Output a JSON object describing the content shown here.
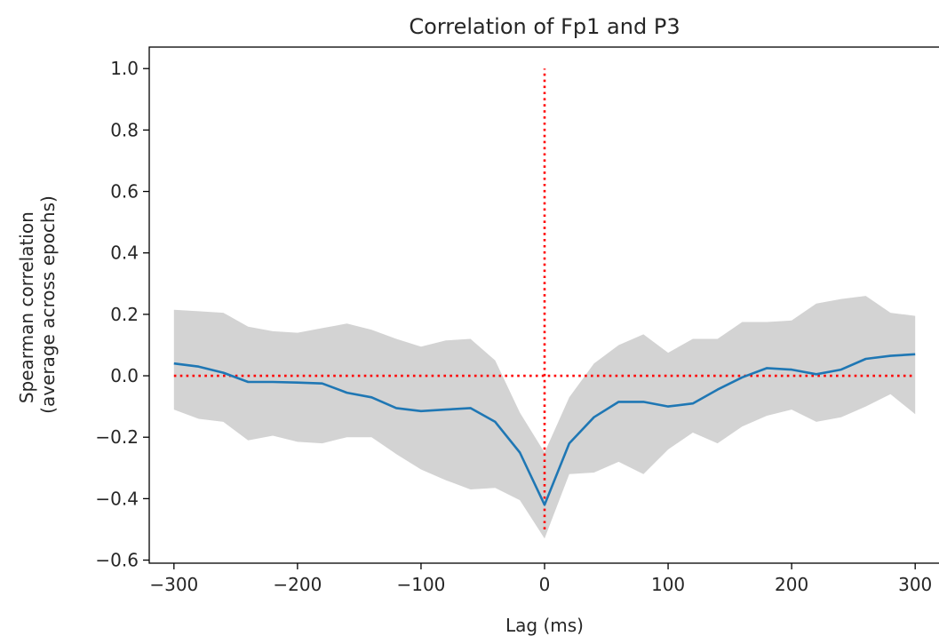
{
  "chart_data": {
    "type": "line",
    "title": "Correlation of Fp1 and P3",
    "xlabel": "Lag (ms)",
    "ylabel": [
      "Spearman correlation",
      "(average across epochs)"
    ],
    "xlim": [
      -320,
      320
    ],
    "ylim": [
      -0.61,
      1.07
    ],
    "xticks": [
      -300,
      -200,
      -100,
      0,
      100,
      200,
      300
    ],
    "xtick_labels": [
      "−300",
      "−200",
      "−100",
      "0",
      "100",
      "200",
      "300"
    ],
    "yticks": [
      -0.6,
      -0.4,
      -0.2,
      0.0,
      0.2,
      0.4,
      0.6,
      0.8,
      1.0
    ],
    "ytick_labels": [
      "−0.6",
      "−0.4",
      "−0.2",
      "0.0",
      "0.2",
      "0.4",
      "0.6",
      "0.8",
      "1.0"
    ],
    "grid": false,
    "x": [
      -300,
      -280,
      -260,
      -240,
      -220,
      -200,
      -180,
      -160,
      -140,
      -120,
      -100,
      -80,
      -60,
      -40,
      -20,
      0,
      20,
      40,
      60,
      80,
      100,
      120,
      140,
      160,
      180,
      200,
      220,
      240,
      260,
      280,
      300
    ],
    "series": [
      {
        "values": [
          0.04,
          0.03,
          0.01,
          -0.02,
          -0.02,
          -0.022,
          -0.025,
          -0.055,
          -0.07,
          -0.105,
          -0.115,
          -0.11,
          -0.105,
          -0.15,
          -0.25,
          -0.42,
          -0.22,
          -0.135,
          -0.085,
          -0.085,
          -0.1,
          -0.09,
          -0.045,
          -0.005,
          0.025,
          0.02,
          0.005,
          0.02,
          0.055,
          0.065,
          0.07
        ],
        "color": "#1f77b4"
      }
    ],
    "band": {
      "upper": [
        0.215,
        0.21,
        0.205,
        0.16,
        0.145,
        0.14,
        0.155,
        0.17,
        0.15,
        0.12,
        0.095,
        0.115,
        0.12,
        0.05,
        -0.12,
        -0.25,
        -0.07,
        0.04,
        0.1,
        0.135,
        0.075,
        0.12,
        0.12,
        0.175,
        0.175,
        0.18,
        0.235,
        0.25,
        0.26,
        0.205,
        0.195
      ],
      "lower": [
        -0.11,
        -0.14,
        -0.15,
        -0.21,
        -0.195,
        -0.215,
        -0.22,
        -0.2,
        -0.2,
        -0.255,
        -0.305,
        -0.34,
        -0.37,
        -0.365,
        -0.405,
        -0.53,
        -0.32,
        -0.315,
        -0.28,
        -0.32,
        -0.24,
        -0.185,
        -0.22,
        -0.165,
        -0.13,
        -0.11,
        -0.15,
        -0.135,
        -0.1,
        -0.06,
        -0.125
      ],
      "color": "#d3d3d3"
    },
    "reference_lines": [
      {
        "orientation": "horizontal",
        "value": 0.0,
        "from": -300,
        "to": 300,
        "style": "dotted",
        "color": "#ff0000"
      },
      {
        "orientation": "vertical",
        "value": 0,
        "from": -0.5,
        "to": 1.0,
        "style": "dotted",
        "color": "#ff0000"
      }
    ]
  }
}
